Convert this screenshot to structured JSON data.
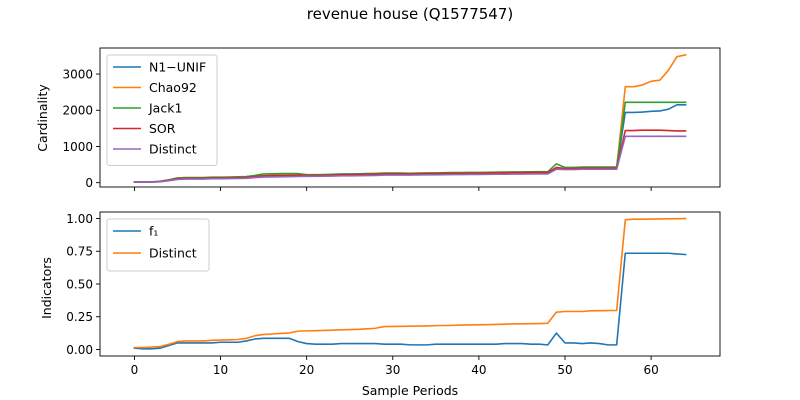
{
  "figure": {
    "title": "revenue house (Q1577547)"
  },
  "chart_data": [
    {
      "type": "line",
      "title": "",
      "xlabel": "",
      "ylabel": "Cardinality",
      "xlim": [
        -4,
        68
      ],
      "ylim": [
        -120,
        3720
      ],
      "xticks": [
        0,
        10,
        20,
        30,
        40,
        50,
        60
      ],
      "yticks": [
        0,
        1000,
        2000,
        3000
      ],
      "grid": false,
      "legend": "upper left",
      "x": [
        0,
        1,
        2,
        3,
        4,
        5,
        6,
        7,
        8,
        9,
        10,
        11,
        12,
        13,
        14,
        15,
        16,
        17,
        18,
        19,
        20,
        21,
        22,
        23,
        24,
        25,
        26,
        27,
        28,
        29,
        30,
        31,
        32,
        33,
        34,
        35,
        36,
        37,
        38,
        39,
        40,
        41,
        42,
        43,
        44,
        45,
        46,
        47,
        48,
        49,
        50,
        51,
        52,
        53,
        54,
        55,
        56,
        57,
        58,
        59,
        60,
        61,
        62,
        63,
        64
      ],
      "series": [
        {
          "name": "N1−UNIF",
          "color": "#1f77b4",
          "values": [
            20,
            20,
            20,
            25,
            60,
            100,
            110,
            110,
            110,
            120,
            120,
            120,
            125,
            130,
            150,
            170,
            175,
            180,
            185,
            190,
            190,
            190,
            195,
            200,
            205,
            205,
            210,
            215,
            220,
            230,
            230,
            230,
            230,
            235,
            240,
            240,
            245,
            245,
            248,
            250,
            250,
            255,
            260,
            262,
            265,
            268,
            270,
            272,
            270,
            400,
            380,
            380,
            390,
            390,
            390,
            390,
            390,
            1940,
            1940,
            1950,
            1970,
            1980,
            2030,
            2150,
            2150
          ]
        },
        {
          "name": "Chao92",
          "color": "#ff7f0e",
          "values": [
            20,
            20,
            20,
            30,
            70,
            110,
            120,
            120,
            120,
            130,
            130,
            135,
            140,
            145,
            170,
            190,
            195,
            200,
            205,
            205,
            205,
            205,
            205,
            210,
            215,
            215,
            220,
            225,
            230,
            240,
            240,
            240,
            240,
            245,
            250,
            250,
            255,
            255,
            258,
            260,
            260,
            265,
            270,
            272,
            275,
            278,
            280,
            282,
            280,
            400,
            390,
            390,
            400,
            400,
            400,
            400,
            400,
            2650,
            2650,
            2700,
            2800,
            2830,
            3100,
            3480,
            3530
          ]
        },
        {
          "name": "Jack1",
          "color": "#2ca02c",
          "values": [
            20,
            20,
            20,
            40,
            80,
            130,
            140,
            140,
            140,
            150,
            150,
            155,
            160,
            170,
            200,
            240,
            245,
            250,
            250,
            250,
            220,
            220,
            225,
            230,
            240,
            240,
            245,
            250,
            255,
            265,
            265,
            265,
            260,
            265,
            270,
            270,
            275,
            278,
            280,
            282,
            283,
            285,
            290,
            292,
            295,
            298,
            300,
            302,
            300,
            520,
            420,
            420,
            430,
            430,
            430,
            430,
            430,
            2220,
            2220,
            2220,
            2220,
            2220,
            2220,
            2220,
            2220
          ]
        },
        {
          "name": "SOR",
          "color": "#d62728",
          "values": [
            18,
            18,
            18,
            30,
            70,
            110,
            120,
            120,
            120,
            130,
            130,
            135,
            140,
            145,
            170,
            190,
            195,
            200,
            205,
            210,
            200,
            200,
            205,
            210,
            220,
            220,
            225,
            230,
            235,
            245,
            245,
            245,
            240,
            245,
            250,
            250,
            255,
            258,
            260,
            262,
            263,
            265,
            270,
            272,
            275,
            278,
            280,
            282,
            280,
            420,
            390,
            390,
            400,
            400,
            400,
            400,
            400,
            1440,
            1440,
            1450,
            1450,
            1450,
            1440,
            1430,
            1430
          ]
        },
        {
          "name": "Distinct",
          "color": "#9467bd",
          "values": [
            15,
            15,
            15,
            25,
            55,
            90,
            100,
            100,
            100,
            110,
            110,
            112,
            115,
            120,
            140,
            155,
            158,
            162,
            165,
            170,
            175,
            175,
            178,
            182,
            188,
            188,
            192,
            196,
            200,
            210,
            210,
            210,
            210,
            213,
            216,
            216,
            220,
            222,
            224,
            226,
            227,
            229,
            232,
            234,
            236,
            238,
            240,
            242,
            240,
            370,
            360,
            360,
            370,
            370,
            370,
            370,
            370,
            1280,
            1280,
            1280,
            1280,
            1280,
            1280,
            1280,
            1280
          ]
        }
      ]
    },
    {
      "type": "line",
      "title": "",
      "xlabel": "Sample Periods",
      "ylabel": "Indicators",
      "xlim": [
        -4,
        68
      ],
      "ylim": [
        -0.05,
        1.05
      ],
      "xticks": [
        0,
        10,
        20,
        30,
        40,
        50,
        60
      ],
      "yticks": [
        0.0,
        0.25,
        0.5,
        0.75,
        1.0
      ],
      "ytick_labels": [
        "0.00",
        "0.25",
        "0.50",
        "0.75",
        "1.00"
      ],
      "grid": false,
      "legend": "upper left",
      "x": [
        0,
        1,
        2,
        3,
        4,
        5,
        6,
        7,
        8,
        9,
        10,
        11,
        12,
        13,
        14,
        15,
        16,
        17,
        18,
        19,
        20,
        21,
        22,
        23,
        24,
        25,
        26,
        27,
        28,
        29,
        30,
        31,
        32,
        33,
        34,
        35,
        36,
        37,
        38,
        39,
        40,
        41,
        42,
        43,
        44,
        45,
        46,
        47,
        48,
        49,
        50,
        51,
        52,
        53,
        54,
        55,
        56,
        57,
        58,
        59,
        60,
        61,
        62,
        63,
        64
      ],
      "series": [
        {
          "name": "f₁",
          "color": "#1f77b4",
          "values": [
            0.01,
            0.005,
            0.005,
            0.01,
            0.03,
            0.05,
            0.05,
            0.05,
            0.05,
            0.05,
            0.055,
            0.055,
            0.055,
            0.065,
            0.08,
            0.085,
            0.085,
            0.085,
            0.085,
            0.06,
            0.045,
            0.04,
            0.04,
            0.04,
            0.045,
            0.045,
            0.045,
            0.045,
            0.045,
            0.04,
            0.04,
            0.04,
            0.035,
            0.035,
            0.035,
            0.04,
            0.04,
            0.04,
            0.04,
            0.04,
            0.04,
            0.04,
            0.04,
            0.045,
            0.045,
            0.045,
            0.04,
            0.04,
            0.035,
            0.125,
            0.05,
            0.05,
            0.045,
            0.05,
            0.045,
            0.035,
            0.035,
            0.735,
            0.735,
            0.735,
            0.735,
            0.735,
            0.735,
            0.73,
            0.725
          ]
        },
        {
          "name": "Distinct",
          "color": "#ff7f0e",
          "values": [
            0.015,
            0.015,
            0.018,
            0.022,
            0.04,
            0.06,
            0.065,
            0.065,
            0.065,
            0.07,
            0.072,
            0.074,
            0.076,
            0.085,
            0.105,
            0.115,
            0.118,
            0.122,
            0.126,
            0.14,
            0.142,
            0.143,
            0.145,
            0.147,
            0.15,
            0.152,
            0.154,
            0.158,
            0.162,
            0.175,
            0.176,
            0.177,
            0.178,
            0.179,
            0.18,
            0.182,
            0.183,
            0.184,
            0.186,
            0.187,
            0.188,
            0.189,
            0.191,
            0.193,
            0.195,
            0.196,
            0.197,
            0.198,
            0.2,
            0.285,
            0.29,
            0.29,
            0.29,
            0.295,
            0.296,
            0.297,
            0.298,
            0.99,
            0.995,
            0.995,
            0.996,
            0.997,
            0.998,
            0.999,
            1.0
          ]
        }
      ]
    }
  ]
}
